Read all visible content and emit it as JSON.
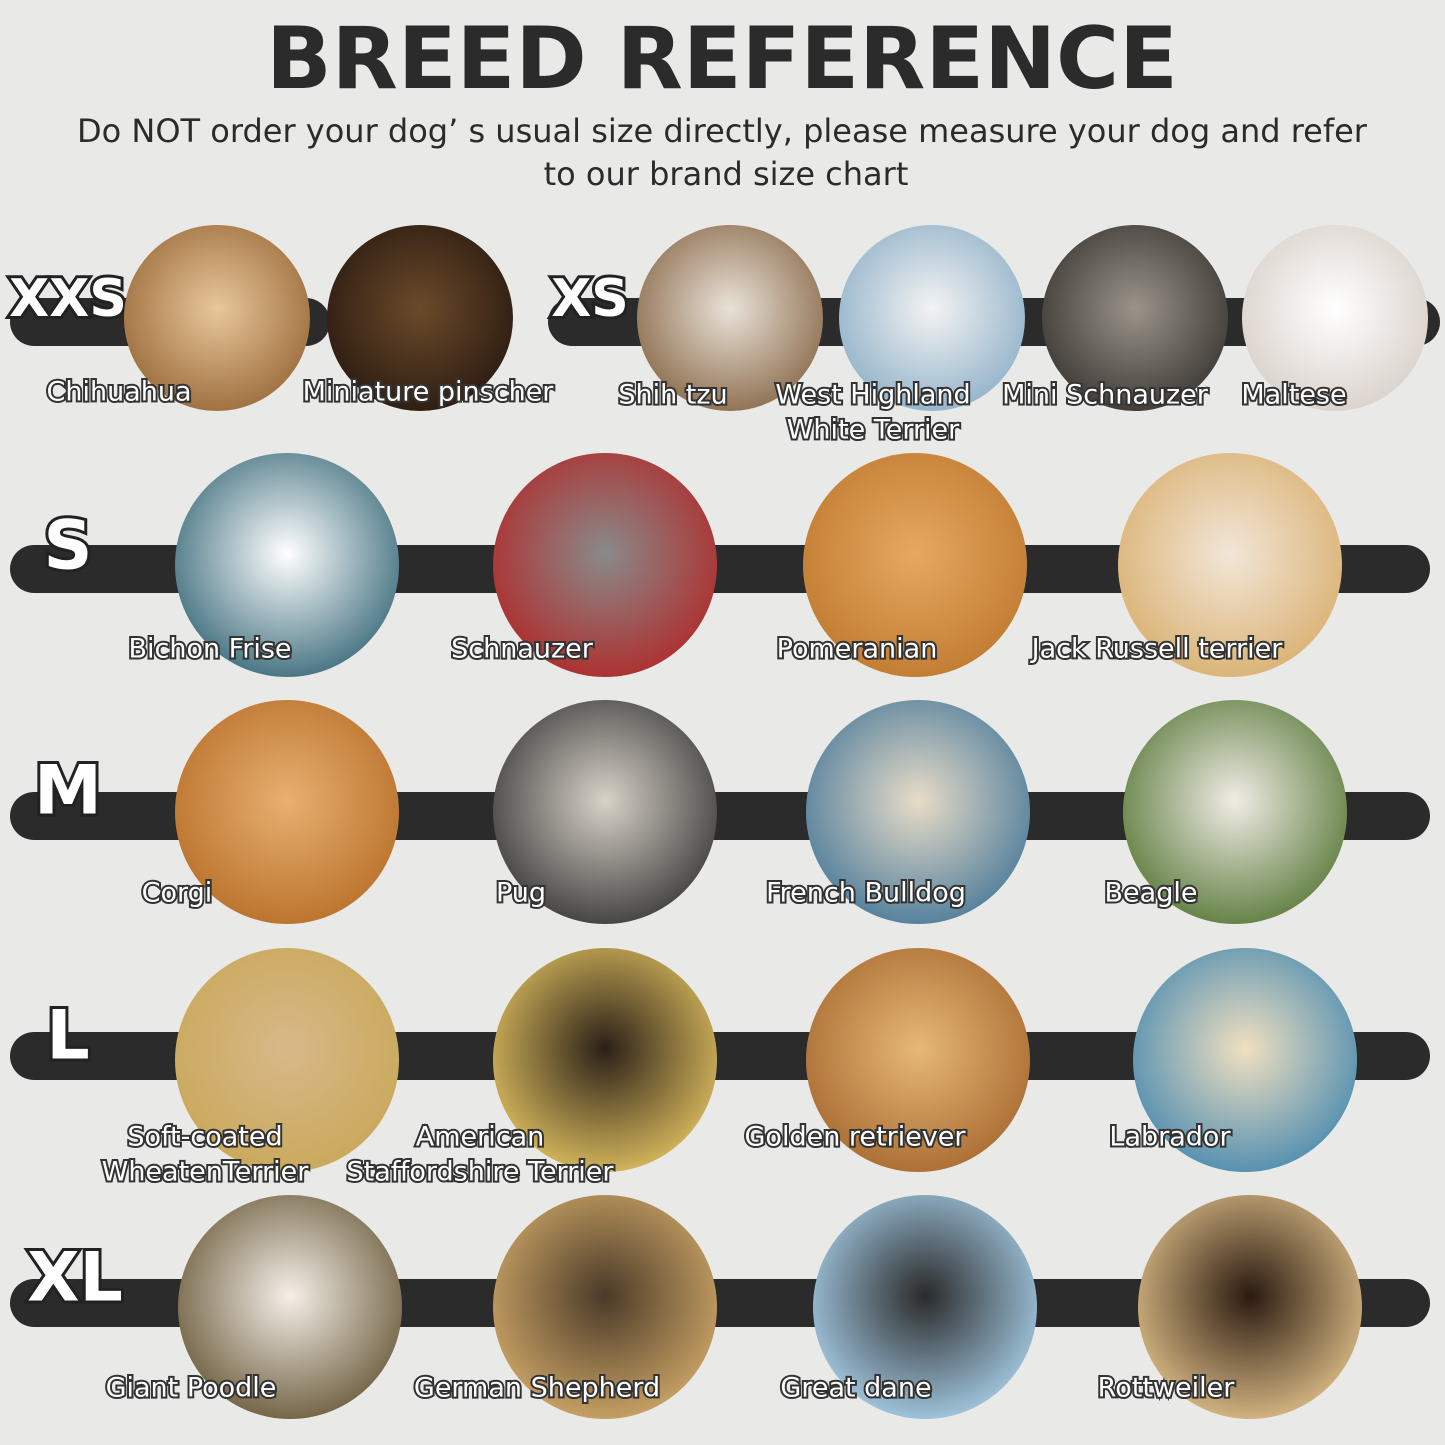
{
  "header": {
    "title": "BREED REFERENCE",
    "subtitle": [
      "Do NOT order your dog’ s usual size directly, please measure your dog and refer",
      "to our brand size chart"
    ]
  },
  "sizes": [
    {
      "size": "XXS",
      "breeds": [
        {
          "label": [
            "Chihuahua"
          ]
        },
        {
          "label": [
            "Miniature pinscher"
          ]
        }
      ]
    },
    {
      "size": "XS",
      "breeds": [
        {
          "label": [
            "Shih tzu"
          ]
        },
        {
          "label": [
            "West Highland",
            "White Terrier"
          ]
        },
        {
          "label": [
            "Mini Schnauzer"
          ]
        },
        {
          "label": [
            "Maltese"
          ]
        }
      ]
    },
    {
      "size": "S",
      "breeds": [
        {
          "label": [
            "Bichon Frise"
          ]
        },
        {
          "label": [
            "Schnauzer"
          ]
        },
        {
          "label": [
            "Pomeranian"
          ]
        },
        {
          "label": [
            "Jack Russell terrier"
          ]
        }
      ]
    },
    {
      "size": "M",
      "breeds": [
        {
          "label": [
            "Corgi"
          ]
        },
        {
          "label": [
            "Pug"
          ]
        },
        {
          "label": [
            "French Bulldog"
          ]
        },
        {
          "label": [
            "Beagle"
          ]
        }
      ]
    },
    {
      "size": "L",
      "breeds": [
        {
          "label": [
            "Soft-coated",
            "WheatenTerrier"
          ]
        },
        {
          "label": [
            "American",
            "Staffordshire Terrier"
          ]
        },
        {
          "label": [
            "Golden retriever"
          ]
        },
        {
          "label": [
            "Labrador"
          ]
        }
      ]
    },
    {
      "size": "XL",
      "breeds": [
        {
          "label": [
            "Giant Poodle"
          ]
        },
        {
          "label": [
            "German Shepherd"
          ]
        },
        {
          "label": [
            "Great dane"
          ]
        },
        {
          "label": [
            "Rottweiler"
          ]
        }
      ]
    }
  ]
}
